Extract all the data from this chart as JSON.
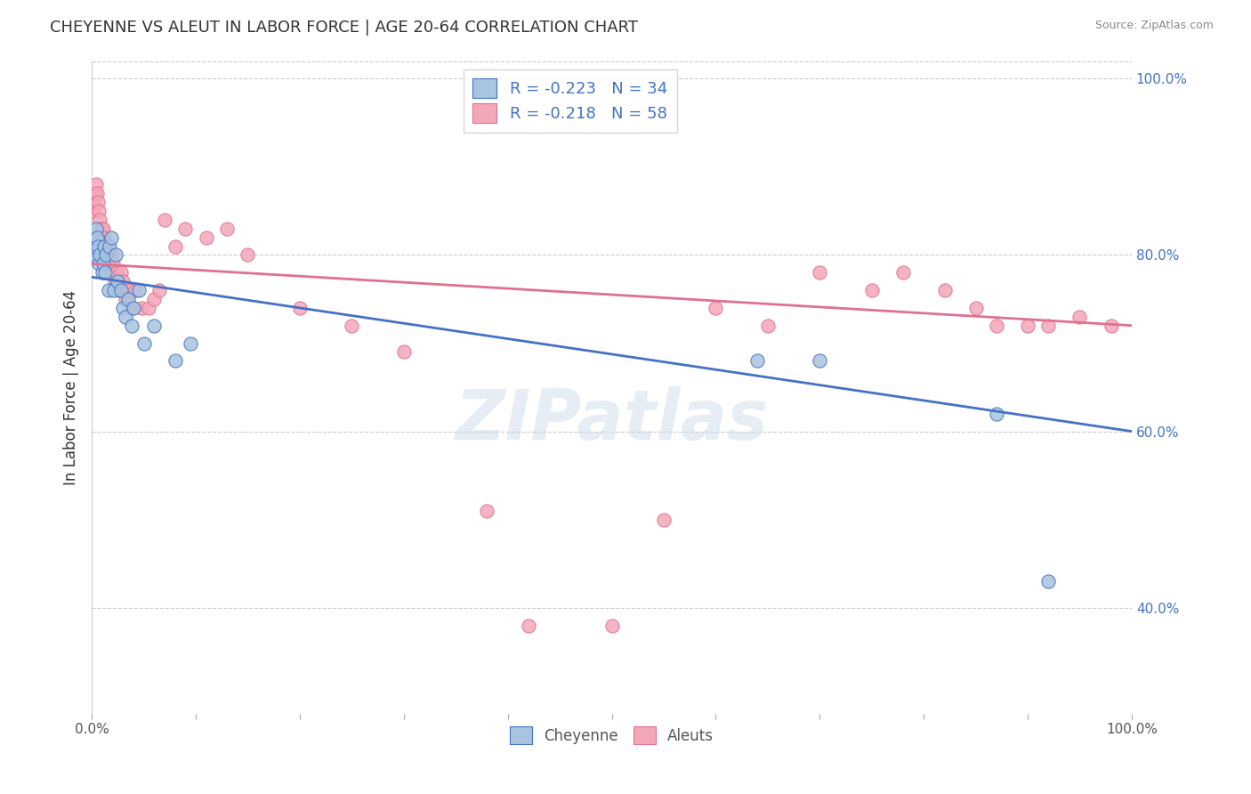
{
  "title": "CHEYENNE VS ALEUT IN LABOR FORCE | AGE 20-64 CORRELATION CHART",
  "source": "Source: ZipAtlas.com",
  "ylabel": "In Labor Force | Age 20-64",
  "legend_label1": "Cheyenne",
  "legend_label2": "Aleuts",
  "r1": "-0.223",
  "n1": "34",
  "r2": "-0.218",
  "n2": "58",
  "watermark": "ZIPatlas",
  "cheyenne_color": "#a8c4e0",
  "aleuts_color": "#f4a7b9",
  "cheyenne_line_color": "#4472c4",
  "aleuts_line_color": "#e07090",
  "cheyenne_x": [
    0.001,
    0.002,
    0.003,
    0.004,
    0.005,
    0.006,
    0.007,
    0.008,
    0.01,
    0.011,
    0.012,
    0.013,
    0.014,
    0.016,
    0.017,
    0.019,
    0.021,
    0.023,
    0.025,
    0.028,
    0.03,
    0.032,
    0.035,
    0.038,
    0.04,
    0.045,
    0.05,
    0.06,
    0.08,
    0.095,
    0.64,
    0.7,
    0.87,
    0.92
  ],
  "cheyenne_y": [
    0.8,
    0.81,
    0.82,
    0.83,
    0.82,
    0.81,
    0.79,
    0.8,
    0.78,
    0.79,
    0.81,
    0.78,
    0.8,
    0.76,
    0.81,
    0.82,
    0.76,
    0.8,
    0.77,
    0.76,
    0.74,
    0.73,
    0.75,
    0.72,
    0.74,
    0.76,
    0.7,
    0.72,
    0.68,
    0.7,
    0.68,
    0.68,
    0.62,
    0.43
  ],
  "aleuts_x": [
    0.001,
    0.002,
    0.003,
    0.004,
    0.005,
    0.006,
    0.007,
    0.008,
    0.009,
    0.01,
    0.011,
    0.012,
    0.013,
    0.014,
    0.015,
    0.016,
    0.017,
    0.018,
    0.019,
    0.02,
    0.022,
    0.024,
    0.026,
    0.028,
    0.03,
    0.032,
    0.035,
    0.038,
    0.042,
    0.048,
    0.055,
    0.06,
    0.065,
    0.07,
    0.08,
    0.09,
    0.11,
    0.13,
    0.15,
    0.2,
    0.25,
    0.3,
    0.38,
    0.42,
    0.5,
    0.55,
    0.6,
    0.65,
    0.7,
    0.75,
    0.78,
    0.82,
    0.85,
    0.87,
    0.9,
    0.92,
    0.95,
    0.98
  ],
  "aleuts_y": [
    0.85,
    0.86,
    0.87,
    0.88,
    0.87,
    0.86,
    0.85,
    0.84,
    0.83,
    0.82,
    0.83,
    0.82,
    0.81,
    0.8,
    0.81,
    0.79,
    0.8,
    0.78,
    0.8,
    0.79,
    0.77,
    0.78,
    0.76,
    0.78,
    0.77,
    0.75,
    0.76,
    0.74,
    0.76,
    0.74,
    0.74,
    0.75,
    0.76,
    0.84,
    0.81,
    0.83,
    0.82,
    0.83,
    0.8,
    0.74,
    0.72,
    0.69,
    0.51,
    0.38,
    0.38,
    0.5,
    0.74,
    0.72,
    0.78,
    0.76,
    0.78,
    0.76,
    0.74,
    0.72,
    0.72,
    0.72,
    0.73,
    0.72
  ],
  "xlim": [
    0.0,
    1.0
  ],
  "ylim": [
    0.28,
    1.02
  ],
  "right_yticks": [
    0.4,
    0.6,
    0.8,
    1.0
  ],
  "right_yticklabels": [
    "40.0%",
    "60.0%",
    "80.0%",
    "100.0%"
  ],
  "cheyenne_trend_x0": 0.0,
  "cheyenne_trend_y0": 0.775,
  "cheyenne_trend_x1": 1.0,
  "cheyenne_trend_y1": 0.6,
  "aleuts_trend_x0": 0.0,
  "aleuts_trend_y0": 0.79,
  "aleuts_trend_x1": 1.0,
  "aleuts_trend_y1": 0.72
}
